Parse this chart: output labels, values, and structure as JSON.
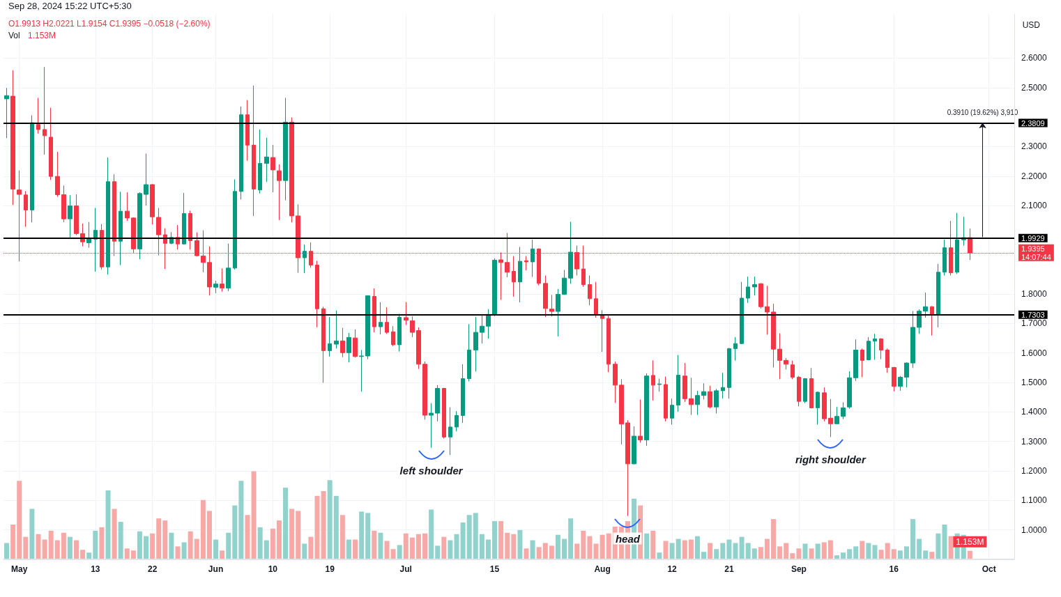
{
  "chart_data": [
    {
      "type": "candlestick",
      "title": "Sep 28, 2024 15:22 UTC+5:30",
      "subtitle": "O1.9913 H2.0221 L1.9154 C1.9395 −0.0518 (−2.60%)",
      "x": [
        "2024-04-29",
        "2024-04-30",
        "2024-05-01",
        "2024-05-02",
        "2024-05-03",
        "2024-05-04",
        "2024-05-05",
        "2024-05-06",
        "2024-05-07",
        "2024-05-08",
        "2024-05-09",
        "2024-05-10",
        "2024-05-11",
        "2024-05-12",
        "2024-05-13",
        "2024-05-14",
        "2024-05-15",
        "2024-05-16",
        "2024-05-17",
        "2024-05-18",
        "2024-05-19",
        "2024-05-20",
        "2024-05-21",
        "2024-05-22",
        "2024-05-23",
        "2024-05-24",
        "2024-05-25",
        "2024-05-26",
        "2024-05-27",
        "2024-05-28",
        "2024-05-29",
        "2024-05-30",
        "2024-05-31",
        "2024-06-01",
        "2024-06-02",
        "2024-06-03",
        "2024-06-04",
        "2024-06-05",
        "2024-06-06",
        "2024-06-07",
        "2024-06-08",
        "2024-06-09",
        "2024-06-10",
        "2024-06-11",
        "2024-06-12",
        "2024-06-13",
        "2024-06-14",
        "2024-06-15",
        "2024-06-16",
        "2024-06-17",
        "2024-06-18",
        "2024-06-19",
        "2024-06-20",
        "2024-06-21",
        "2024-06-22",
        "2024-06-23",
        "2024-06-24",
        "2024-06-25",
        "2024-06-26",
        "2024-06-27",
        "2024-06-28",
        "2024-06-29",
        "2024-06-30",
        "2024-07-01",
        "2024-07-02",
        "2024-07-03",
        "2024-07-04",
        "2024-07-05",
        "2024-07-06",
        "2024-07-07",
        "2024-07-08",
        "2024-07-09",
        "2024-07-10",
        "2024-07-11",
        "2024-07-12",
        "2024-07-13",
        "2024-07-14",
        "2024-07-15",
        "2024-07-16",
        "2024-07-17",
        "2024-07-18",
        "2024-07-19",
        "2024-07-20",
        "2024-07-21",
        "2024-07-22",
        "2024-07-23",
        "2024-07-24",
        "2024-07-25",
        "2024-07-26",
        "2024-07-27",
        "2024-07-28",
        "2024-07-29",
        "2024-07-30",
        "2024-07-31",
        "2024-08-01",
        "2024-08-02",
        "2024-08-03",
        "2024-08-04",
        "2024-08-05",
        "2024-08-06",
        "2024-08-07",
        "2024-08-08",
        "2024-08-09",
        "2024-08-10",
        "2024-08-11",
        "2024-08-12",
        "2024-08-13",
        "2024-08-14",
        "2024-08-15",
        "2024-08-16",
        "2024-08-17",
        "2024-08-18",
        "2024-08-19",
        "2024-08-20",
        "2024-08-21",
        "2024-08-22",
        "2024-08-23",
        "2024-08-24",
        "2024-08-25",
        "2024-08-26",
        "2024-08-27",
        "2024-08-28",
        "2024-08-29",
        "2024-08-30",
        "2024-08-31",
        "2024-09-01",
        "2024-09-02",
        "2024-09-03",
        "2024-09-04",
        "2024-09-05",
        "2024-09-06",
        "2024-09-07",
        "2024-09-08",
        "2024-09-09",
        "2024-09-10",
        "2024-09-11",
        "2024-09-12",
        "2024-09-13",
        "2024-09-14",
        "2024-09-15",
        "2024-09-16",
        "2024-09-17",
        "2024-09-18",
        "2024-09-19",
        "2024-09-20",
        "2024-09-21",
        "2024-09-22",
        "2024-09-23",
        "2024-09-24",
        "2024-09-25",
        "2024-09-26",
        "2024-09-27",
        "2024-09-28"
      ],
      "ohlc": [
        [
          2.462,
          2.499,
          2.329,
          2.473
        ],
        [
          2.471,
          2.559,
          2.102,
          2.156
        ],
        [
          2.153,
          2.219,
          1.911,
          2.138
        ],
        [
          2.136,
          2.149,
          2.028,
          2.085
        ],
        [
          2.085,
          2.406,
          2.043,
          2.381
        ],
        [
          2.375,
          2.465,
          2.344,
          2.358
        ],
        [
          2.358,
          2.57,
          2.273,
          2.337
        ],
        [
          2.332,
          2.432,
          2.187,
          2.199
        ],
        [
          2.199,
          2.282,
          2.13,
          2.137
        ],
        [
          2.137,
          2.168,
          2.044,
          2.055
        ],
        [
          2.055,
          2.135,
          1.988,
          2.099
        ],
        [
          2.099,
          2.138,
          2.0,
          2.005
        ],
        [
          2.005,
          2.039,
          1.962,
          1.977
        ],
        [
          1.974,
          2.044,
          1.957,
          1.989
        ],
        [
          1.986,
          2.092,
          1.876,
          2.016
        ],
        [
          2.016,
          2.037,
          1.883,
          1.892
        ],
        [
          1.892,
          2.263,
          1.866,
          2.181
        ],
        [
          2.181,
          2.206,
          1.929,
          1.979
        ],
        [
          1.979,
          2.147,
          1.898,
          2.081
        ],
        [
          2.081,
          2.145,
          2.048,
          2.058
        ],
        [
          2.058,
          2.06,
          1.938,
          1.953
        ],
        [
          1.953,
          2.145,
          1.918,
          2.141
        ],
        [
          2.138,
          2.276,
          2.1,
          2.171
        ],
        [
          2.171,
          2.173,
          2.036,
          2.062
        ],
        [
          2.06,
          2.092,
          1.931,
          2.001
        ],
        [
          2.001,
          2.023,
          1.885,
          1.972
        ],
        [
          1.972,
          2.01,
          1.969,
          1.992
        ],
        [
          1.992,
          2.034,
          1.951,
          1.97
        ],
        [
          1.97,
          2.143,
          1.968,
          2.073
        ],
        [
          2.073,
          2.083,
          1.951,
          1.981
        ],
        [
          1.981,
          2.009,
          1.927,
          1.93
        ],
        [
          1.929,
          2.016,
          1.874,
          1.907
        ],
        [
          1.907,
          1.962,
          1.795,
          1.824
        ],
        [
          1.823,
          1.845,
          1.803,
          1.834
        ],
        [
          1.834,
          1.887,
          1.808,
          1.82
        ],
        [
          1.82,
          1.971,
          1.81,
          1.888
        ],
        [
          1.888,
          2.189,
          1.883,
          2.148
        ],
        [
          2.148,
          2.436,
          2.121,
          2.408
        ],
        [
          2.408,
          2.458,
          2.252,
          2.305
        ],
        [
          2.305,
          2.507,
          2.065,
          2.156
        ],
        [
          2.153,
          2.358,
          2.141,
          2.243
        ],
        [
          2.243,
          2.33,
          2.18,
          2.265
        ],
        [
          2.263,
          2.306,
          2.145,
          2.221
        ],
        [
          2.218,
          2.24,
          2.051,
          2.185
        ],
        [
          2.185,
          2.465,
          2.118,
          2.383
        ],
        [
          2.383,
          2.399,
          2.043,
          2.065
        ],
        [
          2.065,
          2.104,
          1.872,
          1.923
        ],
        [
          1.923,
          1.968,
          1.871,
          1.945
        ],
        [
          1.945,
          1.975,
          1.889,
          1.898
        ],
        [
          1.898,
          1.913,
          1.687,
          1.75
        ],
        [
          1.75,
          1.757,
          1.499,
          1.608
        ],
        [
          1.608,
          1.722,
          1.588,
          1.631
        ],
        [
          1.63,
          1.744,
          1.615,
          1.641
        ],
        [
          1.641,
          1.685,
          1.586,
          1.601
        ],
        [
          1.601,
          1.668,
          1.568,
          1.653
        ],
        [
          1.651,
          1.68,
          1.585,
          1.588
        ],
        [
          1.588,
          1.61,
          1.469,
          1.59
        ],
        [
          1.59,
          1.795,
          1.579,
          1.794
        ],
        [
          1.792,
          1.819,
          1.67,
          1.689
        ],
        [
          1.689,
          1.772,
          1.663,
          1.704
        ],
        [
          1.704,
          1.755,
          1.665,
          1.67
        ],
        [
          1.672,
          1.691,
          1.623,
          1.628
        ],
        [
          1.628,
          1.733,
          1.605,
          1.721
        ],
        [
          1.72,
          1.773,
          1.695,
          1.711
        ],
        [
          1.709,
          1.724,
          1.654,
          1.67
        ],
        [
          1.676,
          1.687,
          1.546,
          1.562
        ],
        [
          1.562,
          1.571,
          1.374,
          1.389
        ],
        [
          1.389,
          1.43,
          1.279,
          1.396
        ],
        [
          1.396,
          1.491,
          1.368,
          1.48
        ],
        [
          1.48,
          1.482,
          1.31,
          1.315
        ],
        [
          1.315,
          1.416,
          1.254,
          1.349
        ],
        [
          1.349,
          1.403,
          1.334,
          1.388
        ],
        [
          1.388,
          1.562,
          1.363,
          1.513
        ],
        [
          1.513,
          1.698,
          1.504,
          1.61
        ],
        [
          1.61,
          1.722,
          1.537,
          1.67
        ],
        [
          1.67,
          1.731,
          1.632,
          1.691
        ],
        [
          1.691,
          1.749,
          1.649,
          1.731
        ],
        [
          1.731,
          1.921,
          1.725,
          1.915
        ],
        [
          1.916,
          1.941,
          1.78,
          1.907
        ],
        [
          1.907,
          2.007,
          1.857,
          1.874
        ],
        [
          1.877,
          1.929,
          1.791,
          1.841
        ],
        [
          1.841,
          1.96,
          1.772,
          1.911
        ],
        [
          1.913,
          1.929,
          1.88,
          1.909
        ],
        [
          1.909,
          1.984,
          1.858,
          1.953
        ],
        [
          1.953,
          1.955,
          1.83,
          1.836
        ],
        [
          1.836,
          1.863,
          1.722,
          1.751
        ],
        [
          1.749,
          1.797,
          1.724,
          1.741
        ],
        [
          1.741,
          1.817,
          1.656,
          1.799
        ],
        [
          1.799,
          1.882,
          1.797,
          1.854
        ],
        [
          1.854,
          2.045,
          1.835,
          1.942
        ],
        [
          1.941,
          1.964,
          1.863,
          1.885
        ],
        [
          1.885,
          1.964,
          1.825,
          1.832
        ],
        [
          1.832,
          1.863,
          1.762,
          1.784
        ],
        [
          1.784,
          1.841,
          1.72,
          1.728
        ],
        [
          1.728,
          1.745,
          1.604,
          1.717
        ],
        [
          1.717,
          1.731,
          1.535,
          1.562
        ],
        [
          1.562,
          1.571,
          1.431,
          1.491
        ],
        [
          1.491,
          1.511,
          1.29,
          1.359
        ],
        [
          1.363,
          1.372,
          1.047,
          1.224
        ],
        [
          1.224,
          1.351,
          1.222,
          1.318
        ],
        [
          1.318,
          1.442,
          1.296,
          1.305
        ],
        [
          1.305,
          1.531,
          1.285,
          1.522
        ],
        [
          1.524,
          1.575,
          1.439,
          1.491
        ],
        [
          1.493,
          1.513,
          1.469,
          1.495
        ],
        [
          1.493,
          1.52,
          1.368,
          1.379
        ],
        [
          1.379,
          1.445,
          1.357,
          1.423
        ],
        [
          1.423,
          1.593,
          1.401,
          1.525
        ],
        [
          1.522,
          1.566,
          1.434,
          1.445
        ],
        [
          1.445,
          1.516,
          1.39,
          1.425
        ],
        [
          1.425,
          1.472,
          1.39,
          1.456
        ],
        [
          1.456,
          1.497,
          1.442,
          1.469
        ],
        [
          1.469,
          1.489,
          1.412,
          1.417
        ],
        [
          1.417,
          1.478,
          1.395,
          1.472
        ],
        [
          1.472,
          1.533,
          1.445,
          1.483
        ],
        [
          1.483,
          1.617,
          1.445,
          1.615
        ],
        [
          1.615,
          1.654,
          1.574,
          1.632
        ],
        [
          1.632,
          1.841,
          1.63,
          1.786
        ],
        [
          1.786,
          1.859,
          1.77,
          1.824
        ],
        [
          1.824,
          1.859,
          1.795,
          1.832
        ],
        [
          1.835,
          1.837,
          1.751,
          1.757
        ],
        [
          1.757,
          1.828,
          1.662,
          1.739
        ],
        [
          1.739,
          1.767,
          1.551,
          1.613
        ],
        [
          1.613,
          1.667,
          1.511,
          1.575
        ],
        [
          1.575,
          1.583,
          1.544,
          1.562
        ],
        [
          1.56,
          1.574,
          1.511,
          1.518
        ],
        [
          1.518,
          1.522,
          1.419,
          1.436
        ],
        [
          1.436,
          1.515,
          1.43,
          1.513
        ],
        [
          1.513,
          1.549,
          1.412,
          1.414
        ],
        [
          1.414,
          1.469,
          1.357,
          1.467
        ],
        [
          1.465,
          1.483,
          1.368,
          1.377
        ],
        [
          1.379,
          1.444,
          1.315,
          1.36
        ],
        [
          1.36,
          1.417,
          1.359,
          1.385
        ],
        [
          1.385,
          1.433,
          1.376,
          1.414
        ],
        [
          1.417,
          1.538,
          1.411,
          1.516
        ],
        [
          1.516,
          1.646,
          1.505,
          1.61
        ],
        [
          1.61,
          1.615,
          1.518,
          1.575
        ],
        [
          1.577,
          1.654,
          1.575,
          1.64
        ],
        [
          1.64,
          1.665,
          1.577,
          1.648
        ],
        [
          1.648,
          1.65,
          1.579,
          1.61
        ],
        [
          1.61,
          1.615,
          1.533,
          1.551
        ],
        [
          1.551,
          1.553,
          1.47,
          1.487
        ],
        [
          1.487,
          1.522,
          1.472,
          1.518
        ],
        [
          1.518,
          1.568,
          1.483,
          1.566
        ],
        [
          1.566,
          1.742,
          1.549,
          1.687
        ],
        [
          1.687,
          1.748,
          1.665,
          1.742
        ],
        [
          1.742,
          1.805,
          1.72,
          1.757
        ],
        [
          1.757,
          1.759,
          1.659,
          1.731
        ],
        [
          1.731,
          1.902,
          1.687,
          1.874
        ],
        [
          1.874,
          1.984,
          1.863,
          1.957
        ],
        [
          1.957,
          2.048,
          1.863,
          1.872
        ],
        [
          1.874,
          2.075,
          1.868,
          1.984
        ],
        [
          1.984,
          2.062,
          1.964,
          1.9913
        ],
        [
          1.9913,
          2.0221,
          1.9154,
          1.9395
        ]
      ],
      "colors": [
        "#089981",
        "#f23645",
        "#f23645",
        "#f23645",
        "#089981",
        "#f23645",
        "#f23645",
        "#f23645",
        "#f23645",
        "#f23645",
        "#089981",
        "#f23645",
        "#f23645",
        "#089981",
        "#089981",
        "#f23645",
        "#089981",
        "#f23645",
        "#089981",
        "#f23645",
        "#f23645",
        "#089981",
        "#089981",
        "#f23645",
        "#f23645",
        "#f23645",
        "#089981",
        "#f23645",
        "#089981",
        "#f23645",
        "#f23645",
        "#f23645",
        "#f23645",
        "#089981",
        "#f23645",
        "#089981",
        "#089981",
        "#089981",
        "#f23645",
        "#f23645",
        "#089981",
        "#089981",
        "#f23645",
        "#f23645",
        "#089981",
        "#f23645",
        "#f23645",
        "#089981",
        "#f23645",
        "#f23645",
        "#f23645",
        "#089981",
        "#089981",
        "#f23645",
        "#089981",
        "#f23645",
        "#089981",
        "#089981",
        "#f23645",
        "#089981",
        "#f23645",
        "#f23645",
        "#089981",
        "#f23645",
        "#f23645",
        "#f23645",
        "#f23645",
        "#089981",
        "#089981",
        "#f23645",
        "#089981",
        "#089981",
        "#089981",
        "#089981",
        "#089981",
        "#089981",
        "#089981",
        "#089981",
        "#f23645",
        "#f23645",
        "#f23645",
        "#089981",
        "#f23645",
        "#089981",
        "#f23645",
        "#f23645",
        "#f23645",
        "#089981",
        "#089981",
        "#089981",
        "#f23645",
        "#f23645",
        "#f23645",
        "#f23645",
        "#f23645",
        "#f23645",
        "#f23645",
        "#f23645",
        "#f23645",
        "#089981",
        "#f23645",
        "#089981",
        "#f23645",
        "#089981",
        "#f23645",
        "#089981",
        "#089981",
        "#f23645",
        "#f23645",
        "#089981",
        "#089981",
        "#f23645",
        "#089981",
        "#089981",
        "#089981",
        "#089981",
        "#089981",
        "#089981",
        "#089981",
        "#f23645",
        "#f23645",
        "#f23645",
        "#f23645",
        "#f23645",
        "#f23645",
        "#f23645",
        "#089981",
        "#f23645",
        "#089981",
        "#f23645",
        "#f23645",
        "#089981",
        "#089981",
        "#089981",
        "#089981",
        "#f23645",
        "#089981",
        "#089981",
        "#f23645",
        "#f23645",
        "#f23645",
        "#089981",
        "#089981",
        "#089981",
        "#089981",
        "#089981",
        "#f23645",
        "#089981",
        "#089981",
        "#f23645",
        "#089981",
        "#089981",
        "#f23645"
      ],
      "xlim": [
        "2024-04-28T12:00",
        "2024-10-05"
      ],
      "xticks": [
        {
          "value": "2024-05-01",
          "label": "May"
        },
        {
          "value": "2024-05-13",
          "label": "13"
        },
        {
          "value": "2024-05-22",
          "label": "22"
        },
        {
          "value": "2024-06-01",
          "label": "Jun"
        },
        {
          "value": "2024-06-10",
          "label": "10"
        },
        {
          "value": "2024-06-19",
          "label": "19"
        },
        {
          "value": "2024-07-01",
          "label": "Jul"
        },
        {
          "value": "2024-07-15",
          "label": "15"
        },
        {
          "value": "2024-08-01",
          "label": "Aug"
        },
        {
          "value": "2024-08-12",
          "label": "12"
        },
        {
          "value": "2024-08-21",
          "label": "21"
        },
        {
          "value": "2024-09-01",
          "label": "Sep"
        },
        {
          "value": "2024-09-16",
          "label": "16"
        },
        {
          "value": "2024-10-01",
          "label": "Oct"
        }
      ],
      "ylim": [
        0.9,
        2.75
      ],
      "yticks": [
        {
          "value": 1.0,
          "label": "1.0000"
        },
        {
          "value": 1.1,
          "label": "1.1000"
        },
        {
          "value": 1.2,
          "label": "1.2000"
        },
        {
          "value": 1.3,
          "label": "1.3000"
        },
        {
          "value": 1.4,
          "label": "1.4000"
        },
        {
          "value": 1.5,
          "label": "1.5000"
        },
        {
          "value": 1.6,
          "label": "1.6000"
        },
        {
          "value": 1.7,
          "label": "1.7000"
        },
        {
          "value": 1.8,
          "label": "1.8000"
        },
        {
          "value": 2.1,
          "label": "2.1000"
        },
        {
          "value": 2.2,
          "label": "2.2000"
        },
        {
          "value": 2.3,
          "label": "2.3000"
        },
        {
          "value": 2.5,
          "label": "2.5000"
        },
        {
          "value": 2.6,
          "label": "2.6000"
        }
      ],
      "grid": true,
      "ref_lines": [
        {
          "axis": "y",
          "value": 2.3809,
          "label": "2.3809",
          "color": "#000000",
          "line_style": "solid"
        },
        {
          "axis": "y",
          "value": 1.9929,
          "label": "1.9929",
          "color": "#000000",
          "line_style": "solid"
        },
        {
          "axis": "y",
          "value": 1.7303,
          "label": "1.7303",
          "color": "#000000",
          "line_style": "solid"
        },
        {
          "axis": "y",
          "value": 1.9395,
          "label": "1.9395\n14:07:44",
          "color": "#f23645",
          "line_style": "dotted"
        }
      ],
      "annotations": [
        "USD",
        {
          "text": "left shoulder",
          "x": "2024-07-05",
          "y": 1.279
        },
        {
          "text": "head",
          "x": "2024-08-05",
          "y": 1.047
        },
        {
          "text": "right shoulder",
          "x": "2024-09-06",
          "y": 1.315
        },
        {
          "text": "0.3910 (19.62%) 3,910",
          "x": "2024-09-30",
          "y": 2.3809
        }
      ]
    },
    {
      "type": "bar",
      "title": "Vol",
      "x": [
        "2024-04-29",
        "2024-04-30",
        "2024-05-01",
        "2024-05-02",
        "2024-05-03",
        "2024-05-04",
        "2024-05-05",
        "2024-05-06",
        "2024-05-07",
        "2024-05-08",
        "2024-05-09",
        "2024-05-10",
        "2024-05-11",
        "2024-05-12",
        "2024-05-13",
        "2024-05-14",
        "2024-05-15",
        "2024-05-16",
        "2024-05-17",
        "2024-05-18",
        "2024-05-19",
        "2024-05-20",
        "2024-05-21",
        "2024-05-22",
        "2024-05-23",
        "2024-05-24",
        "2024-05-25",
        "2024-05-26",
        "2024-05-27",
        "2024-05-28",
        "2024-05-29",
        "2024-05-30",
        "2024-05-31",
        "2024-06-01",
        "2024-06-02",
        "2024-06-03",
        "2024-06-04",
        "2024-06-05",
        "2024-06-06",
        "2024-06-07",
        "2024-06-08",
        "2024-06-09",
        "2024-06-10",
        "2024-06-11",
        "2024-06-12",
        "2024-06-13",
        "2024-06-14",
        "2024-06-15",
        "2024-06-16",
        "2024-06-17",
        "2024-06-18",
        "2024-06-19",
        "2024-06-20",
        "2024-06-21",
        "2024-06-22",
        "2024-06-23",
        "2024-06-24",
        "2024-06-25",
        "2024-06-26",
        "2024-06-27",
        "2024-06-28",
        "2024-06-29",
        "2024-06-30",
        "2024-07-01",
        "2024-07-02",
        "2024-07-03",
        "2024-07-04",
        "2024-07-05",
        "2024-07-06",
        "2024-07-07",
        "2024-07-08",
        "2024-07-09",
        "2024-07-10",
        "2024-07-11",
        "2024-07-12",
        "2024-07-13",
        "2024-07-14",
        "2024-07-15",
        "2024-07-16",
        "2024-07-17",
        "2024-07-18",
        "2024-07-19",
        "2024-07-20",
        "2024-07-21",
        "2024-07-22",
        "2024-07-23",
        "2024-07-24",
        "2024-07-25",
        "2024-07-26",
        "2024-07-27",
        "2024-07-28",
        "2024-07-29",
        "2024-07-30",
        "2024-07-31",
        "2024-08-01",
        "2024-08-02",
        "2024-08-03",
        "2024-08-04",
        "2024-08-05",
        "2024-08-06",
        "2024-08-07",
        "2024-08-08",
        "2024-08-09",
        "2024-08-10",
        "2024-08-11",
        "2024-08-12",
        "2024-08-13",
        "2024-08-14",
        "2024-08-15",
        "2024-08-16",
        "2024-08-17",
        "2024-08-18",
        "2024-08-19",
        "2024-08-20",
        "2024-08-21",
        "2024-08-22",
        "2024-08-23",
        "2024-08-24",
        "2024-08-25",
        "2024-08-26",
        "2024-08-27",
        "2024-08-28",
        "2024-08-29",
        "2024-08-30",
        "2024-08-31",
        "2024-09-01",
        "2024-09-02",
        "2024-09-03",
        "2024-09-04",
        "2024-09-05",
        "2024-09-06",
        "2024-09-07",
        "2024-09-08",
        "2024-09-09",
        "2024-09-10",
        "2024-09-11",
        "2024-09-12",
        "2024-09-13",
        "2024-09-14",
        "2024-09-15",
        "2024-09-16",
        "2024-09-17",
        "2024-09-18",
        "2024-09-19",
        "2024-09-20",
        "2024-09-21",
        "2024-09-22",
        "2024-09-23",
        "2024-09-24",
        "2024-09-25",
        "2024-09-26",
        "2024-09-27",
        "2024-09-28"
      ],
      "values": [
        2.3,
        5.0,
        11.4,
        3.2,
        7.3,
        3.6,
        2.8,
        4.1,
        2.7,
        3.8,
        3.2,
        2.7,
        1.3,
        0.9,
        4.1,
        4.6,
        10.0,
        7.3,
        5.4,
        1.5,
        1.2,
        4.0,
        3.3,
        3.7,
        5.9,
        5.6,
        3.8,
        1.8,
        2.4,
        4.0,
        2.9,
        8.6,
        7.0,
        2.8,
        1.2,
        3.8,
        7.8,
        11.4,
        6.4,
        12.8,
        4.6,
        2.7,
        4.4,
        5.6,
        10.4,
        7.3,
        7.0,
        2.2,
        3.2,
        9.2,
        9.9,
        11.5,
        9.2,
        6.4,
        2.8,
        2.8,
        6.9,
        6.7,
        4.1,
        3.8,
        2.6,
        1.4,
        2.0,
        3.7,
        3.1,
        3.6,
        3.7,
        7.2,
        1.9,
        3.2,
        2.7,
        3.6,
        5.3,
        6.4,
        6.7,
        3.6,
        2.8,
        5.5,
        5.5,
        3.8,
        3.6,
        4.2,
        1.5,
        2.7,
        1.7,
        2.3,
        1.9,
        3.5,
        2.9,
        5.9,
        2.2,
        4.1,
        3.3,
        2.2,
        3.5,
        3.7,
        4.7,
        4.7,
        5.5,
        8.8,
        7.8,
        3.7,
        4.1,
        0.9,
        2.6,
        2.3,
        2.9,
        2.7,
        2.8,
        3.3,
        1.0,
        2.3,
        1.4,
        2.3,
        2.8,
        2.3,
        3.2,
        2.3,
        1.5,
        1.7,
        2.9,
        5.8,
        1.8,
        2.3,
        0.8,
        1.5,
        2.2,
        1.5,
        2.2,
        2.4,
        2.7,
        0.5,
        0.9,
        1.4,
        1.8,
        2.6,
        2.3,
        2.0,
        1.3,
        2.3,
        1.4,
        1.2,
        1.8,
        5.8,
        2.9,
        1.2,
        1.0,
        3.7,
        5.0,
        3.3,
        3.7,
        3.5,
        1.153
      ],
      "colors": [
        "#92d2cc",
        "#f7a9a7",
        "#f7a9a7",
        "#f7a9a7",
        "#92d2cc",
        "#f7a9a7",
        "#f7a9a7",
        "#f7a9a7",
        "#f7a9a7",
        "#f7a9a7",
        "#92d2cc",
        "#f7a9a7",
        "#f7a9a7",
        "#92d2cc",
        "#92d2cc",
        "#f7a9a7",
        "#92d2cc",
        "#f7a9a7",
        "#92d2cc",
        "#f7a9a7",
        "#f7a9a7",
        "#92d2cc",
        "#92d2cc",
        "#f7a9a7",
        "#f7a9a7",
        "#f7a9a7",
        "#92d2cc",
        "#f7a9a7",
        "#92d2cc",
        "#f7a9a7",
        "#f7a9a7",
        "#f7a9a7",
        "#f7a9a7",
        "#92d2cc",
        "#f7a9a7",
        "#92d2cc",
        "#92d2cc",
        "#92d2cc",
        "#f7a9a7",
        "#f7a9a7",
        "#92d2cc",
        "#92d2cc",
        "#f7a9a7",
        "#f7a9a7",
        "#92d2cc",
        "#f7a9a7",
        "#f7a9a7",
        "#92d2cc",
        "#f7a9a7",
        "#f7a9a7",
        "#f7a9a7",
        "#92d2cc",
        "#92d2cc",
        "#f7a9a7",
        "#92d2cc",
        "#f7a9a7",
        "#92d2cc",
        "#92d2cc",
        "#f7a9a7",
        "#92d2cc",
        "#f7a9a7",
        "#f7a9a7",
        "#92d2cc",
        "#f7a9a7",
        "#f7a9a7",
        "#f7a9a7",
        "#f7a9a7",
        "#92d2cc",
        "#92d2cc",
        "#f7a9a7",
        "#92d2cc",
        "#92d2cc",
        "#92d2cc",
        "#92d2cc",
        "#92d2cc",
        "#92d2cc",
        "#92d2cc",
        "#92d2cc",
        "#f7a9a7",
        "#f7a9a7",
        "#f7a9a7",
        "#92d2cc",
        "#f7a9a7",
        "#92d2cc",
        "#f7a9a7",
        "#f7a9a7",
        "#f7a9a7",
        "#92d2cc",
        "#92d2cc",
        "#92d2cc",
        "#f7a9a7",
        "#f7a9a7",
        "#f7a9a7",
        "#f7a9a7",
        "#f7a9a7",
        "#f7a9a7",
        "#f7a9a7",
        "#f7a9a7",
        "#f7a9a7",
        "#92d2cc",
        "#f7a9a7",
        "#92d2cc",
        "#f7a9a7",
        "#92d2cc",
        "#f7a9a7",
        "#92d2cc",
        "#92d2cc",
        "#f7a9a7",
        "#f7a9a7",
        "#92d2cc",
        "#92d2cc",
        "#f7a9a7",
        "#92d2cc",
        "#92d2cc",
        "#92d2cc",
        "#92d2cc",
        "#92d2cc",
        "#92d2cc",
        "#92d2cc",
        "#f7a9a7",
        "#f7a9a7",
        "#f7a9a7",
        "#f7a9a7",
        "#f7a9a7",
        "#f7a9a7",
        "#f7a9a7",
        "#92d2cc",
        "#f7a9a7",
        "#92d2cc",
        "#f7a9a7",
        "#f7a9a7",
        "#92d2cc",
        "#92d2cc",
        "#92d2cc",
        "#92d2cc",
        "#f7a9a7",
        "#92d2cc",
        "#92d2cc",
        "#f7a9a7",
        "#f7a9a7",
        "#f7a9a7",
        "#92d2cc",
        "#92d2cc",
        "#92d2cc",
        "#92d2cc",
        "#92d2cc",
        "#f7a9a7",
        "#92d2cc",
        "#92d2cc",
        "#f7a9a7",
        "#92d2cc",
        "#92d2cc",
        "#f7a9a7"
      ],
      "value_labels": [
        null,
        null,
        null,
        null,
        null,
        null,
        null,
        null,
        null,
        null,
        null,
        null,
        null,
        null,
        null,
        null,
        null,
        null,
        null,
        null,
        null,
        null,
        null,
        null,
        null,
        null,
        null,
        null,
        null,
        null,
        null,
        null,
        null,
        null,
        null,
        null,
        null,
        null,
        null,
        null,
        null,
        null,
        null,
        null,
        null,
        null,
        null,
        null,
        null,
        null,
        null,
        null,
        null,
        null,
        null,
        null,
        null,
        null,
        null,
        null,
        null,
        null,
        null,
        null,
        null,
        null,
        null,
        null,
        null,
        null,
        null,
        null,
        null,
        null,
        null,
        null,
        null,
        null,
        null,
        null,
        null,
        null,
        null,
        null,
        null,
        null,
        null,
        null,
        null,
        null,
        null,
        null,
        null,
        null,
        null,
        null,
        null,
        null,
        null,
        null,
        null,
        null,
        null,
        null,
        null,
        null,
        null,
        null,
        null,
        null,
        null,
        null,
        null,
        null,
        null,
        null,
        null,
        null,
        null,
        null,
        null,
        null,
        null,
        null,
        null,
        null,
        null,
        null,
        null,
        null,
        null,
        null,
        null,
        null,
        null,
        null,
        null,
        null,
        null,
        null,
        null,
        null,
        null,
        null,
        null,
        null,
        null,
        null,
        null,
        null,
        null,
        null,
        "1.153M"
      ],
      "annotations": [
        "1.153M"
      ],
      "xlim": [
        "2024-04-28T12:00",
        "2024-10-05"
      ]
    }
  ]
}
